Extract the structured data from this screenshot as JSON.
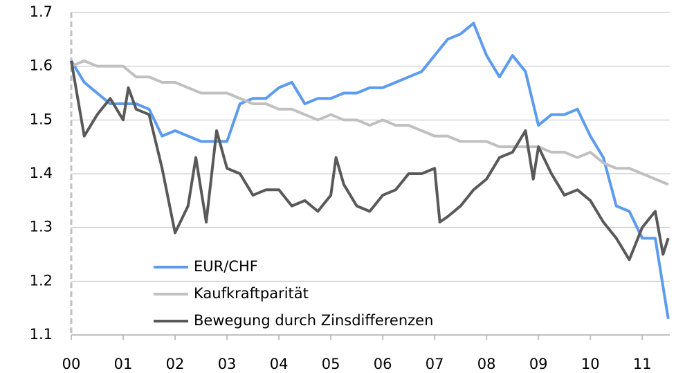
{
  "chart_data": {
    "type": "line",
    "xlim": [
      0,
      11.53
    ],
    "ylim": [
      1.1,
      1.7
    ],
    "xticks": [
      {
        "value": 0,
        "label": "00"
      },
      {
        "value": 1,
        "label": "01"
      },
      {
        "value": 2,
        "label": "02"
      },
      {
        "value": 3,
        "label": "03"
      },
      {
        "value": 4,
        "label": "04"
      },
      {
        "value": 5,
        "label": "05"
      },
      {
        "value": 6,
        "label": "06"
      },
      {
        "value": 7,
        "label": "07"
      },
      {
        "value": 8,
        "label": "08"
      },
      {
        "value": 9,
        "label": "09"
      },
      {
        "value": 10,
        "label": "10"
      },
      {
        "value": 11,
        "label": "11"
      }
    ],
    "yticks": [
      1.1,
      1.2,
      1.3,
      1.4,
      1.5,
      1.6,
      1.7
    ],
    "grid": true,
    "legend": "lower left",
    "series": [
      {
        "name": "EUR/CHF",
        "color": "#5b9bf0",
        "x": [
          0,
          0.25,
          0.5,
          0.75,
          1,
          1.25,
          1.5,
          1.75,
          2,
          2.25,
          2.5,
          2.75,
          3,
          3.25,
          3.5,
          3.75,
          4,
          4.25,
          4.5,
          4.75,
          5,
          5.25,
          5.5,
          5.75,
          6,
          6.25,
          6.5,
          6.75,
          7,
          7.25,
          7.5,
          7.75,
          8,
          8.25,
          8.5,
          8.75,
          9,
          9.25,
          9.5,
          9.75,
          10,
          10.25,
          10.5,
          10.75,
          11,
          11.25,
          11.5
        ],
        "values": [
          1.61,
          1.57,
          1.55,
          1.53,
          1.53,
          1.53,
          1.52,
          1.47,
          1.48,
          1.47,
          1.46,
          1.46,
          1.46,
          1.53,
          1.54,
          1.54,
          1.56,
          1.57,
          1.53,
          1.54,
          1.54,
          1.55,
          1.55,
          1.56,
          1.56,
          1.57,
          1.58,
          1.59,
          1.62,
          1.65,
          1.66,
          1.68,
          1.62,
          1.58,
          1.62,
          1.59,
          1.49,
          1.51,
          1.51,
          1.52,
          1.47,
          1.43,
          1.34,
          1.33,
          1.28,
          1.28,
          1.13
        ]
      },
      {
        "name": "Kaufkraftparität",
        "color": "#c0c0c0",
        "x": [
          0,
          0.25,
          0.5,
          0.75,
          1,
          1.25,
          1.5,
          1.75,
          2,
          2.25,
          2.5,
          2.75,
          3,
          3.25,
          3.5,
          3.75,
          4,
          4.25,
          4.5,
          4.75,
          5,
          5.25,
          5.5,
          5.75,
          6,
          6.25,
          6.5,
          6.75,
          7,
          7.25,
          7.5,
          7.75,
          8,
          8.25,
          8.5,
          8.75,
          9,
          9.25,
          9.5,
          9.75,
          10,
          10.25,
          10.5,
          10.75,
          11,
          11.25,
          11.5
        ],
        "values": [
          1.6,
          1.61,
          1.6,
          1.6,
          1.6,
          1.58,
          1.58,
          1.57,
          1.57,
          1.56,
          1.55,
          1.55,
          1.55,
          1.54,
          1.53,
          1.53,
          1.52,
          1.52,
          1.51,
          1.5,
          1.51,
          1.5,
          1.5,
          1.49,
          1.5,
          1.49,
          1.49,
          1.48,
          1.47,
          1.47,
          1.46,
          1.46,
          1.46,
          1.45,
          1.45,
          1.45,
          1.45,
          1.44,
          1.44,
          1.43,
          1.44,
          1.42,
          1.41,
          1.41,
          1.4,
          1.39,
          1.38
        ]
      },
      {
        "name": "Bewegung durch Zinsdifferenzen",
        "color": "#595959",
        "x": [
          0,
          0.25,
          0.5,
          0.75,
          1,
          1.1,
          1.25,
          1.5,
          1.75,
          2,
          2.25,
          2.4,
          2.6,
          2.8,
          3,
          3.25,
          3.5,
          3.75,
          4,
          4.25,
          4.5,
          4.75,
          5,
          5.1,
          5.25,
          5.5,
          5.75,
          6,
          6.25,
          6.5,
          6.75,
          7,
          7.1,
          7.25,
          7.5,
          7.75,
          8,
          8.25,
          8.5,
          8.75,
          8.9,
          9,
          9.25,
          9.5,
          9.75,
          10,
          10.25,
          10.5,
          10.75,
          11,
          11.25,
          11.4,
          11.5
        ],
        "values": [
          1.61,
          1.47,
          1.51,
          1.54,
          1.5,
          1.56,
          1.52,
          1.51,
          1.41,
          1.29,
          1.34,
          1.43,
          1.31,
          1.48,
          1.41,
          1.4,
          1.36,
          1.37,
          1.37,
          1.34,
          1.35,
          1.33,
          1.36,
          1.43,
          1.38,
          1.34,
          1.33,
          1.36,
          1.37,
          1.4,
          1.4,
          1.41,
          1.31,
          1.32,
          1.34,
          1.37,
          1.39,
          1.43,
          1.44,
          1.48,
          1.39,
          1.45,
          1.4,
          1.36,
          1.37,
          1.35,
          1.31,
          1.28,
          1.24,
          1.3,
          1.33,
          1.25,
          1.28
        ]
      }
    ]
  }
}
